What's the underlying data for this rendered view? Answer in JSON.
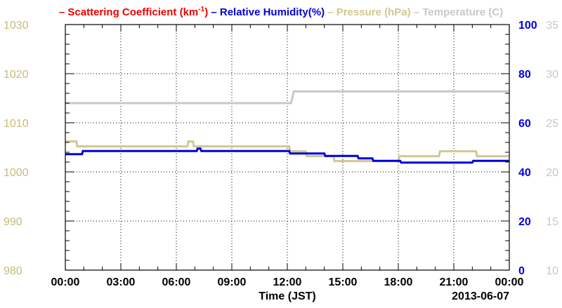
{
  "chart_data": {
    "type": "line",
    "legend": {
      "placement": "top",
      "entries": [
        {
          "series": "scattering",
          "text": "Scattering Coefficient (km",
          "sup": "-1",
          "tail": ")",
          "color": "#ee0000"
        },
        {
          "series": "humidity",
          "text": "Relative Humidity(%)",
          "color": "#0000dd"
        },
        {
          "series": "pressure",
          "text": "Pressure (hPa)",
          "color": "#d2c890"
        },
        {
          "series": "temperature",
          "text": "Temperature (C)",
          "color": "#c8c8c8"
        }
      ]
    },
    "xlabel": "Time (JST)",
    "date_label": "2013-06-07",
    "x_range_hours": [
      0,
      24
    ],
    "x_ticks": [
      {
        "hour": 0,
        "label": "00:00"
      },
      {
        "hour": 3,
        "label": "03:00"
      },
      {
        "hour": 6,
        "label": "06:00"
      },
      {
        "hour": 9,
        "label": "09:00"
      },
      {
        "hour": 12,
        "label": "12:00"
      },
      {
        "hour": 15,
        "label": "15:00"
      },
      {
        "hour": 18,
        "label": "18:00"
      },
      {
        "hour": 21,
        "label": "21:00"
      },
      {
        "hour": 24,
        "label": "00:00"
      }
    ],
    "grid": true,
    "axes": {
      "pressure": {
        "side": "left-outer",
        "range": [
          980,
          1030
        ],
        "ticks": [
          "980",
          "990",
          "1000",
          "1010",
          "1020",
          "1030"
        ],
        "color": "#c8bc78"
      },
      "humidity": {
        "side": "right-inner",
        "range": [
          0,
          100
        ],
        "ticks": [
          "0",
          "20",
          "40",
          "60",
          "80",
          "100"
        ],
        "color": "#0000dd"
      },
      "temperature": {
        "side": "right-outer",
        "range": [
          10,
          35
        ],
        "ticks": [
          "10",
          "15",
          "20",
          "25",
          "30",
          "35"
        ],
        "color": "#c8c8c8"
      }
    },
    "series": [
      {
        "key": "temperature",
        "axis": "temperature",
        "color": "#c8c8c8",
        "points": [
          [
            0,
            27.0
          ],
          [
            12.2,
            27.0
          ],
          [
            12.35,
            28.2
          ],
          [
            24,
            28.2
          ]
        ]
      },
      {
        "key": "pressure",
        "axis": "pressure",
        "color": "#d2c890",
        "points": [
          [
            0,
            1006.2
          ],
          [
            0.6,
            1006.2
          ],
          [
            0.65,
            1005.2
          ],
          [
            6.6,
            1005.2
          ],
          [
            6.65,
            1006.2
          ],
          [
            6.9,
            1006.2
          ],
          [
            6.95,
            1005.2
          ],
          [
            12.1,
            1005.2
          ],
          [
            12.15,
            1004.2
          ],
          [
            13.0,
            1004.2
          ],
          [
            13.05,
            1003.2
          ],
          [
            14.5,
            1003.2
          ],
          [
            14.55,
            1002.2
          ],
          [
            16.2,
            1002.2
          ],
          [
            16.25,
            1002.2
          ],
          [
            18.0,
            1002.2
          ],
          [
            18.05,
            1003.2
          ],
          [
            20.2,
            1003.2
          ],
          [
            20.25,
            1004.2
          ],
          [
            22.2,
            1004.2
          ],
          [
            22.25,
            1003.2
          ],
          [
            24,
            1003.2
          ]
        ]
      },
      {
        "key": "humidity",
        "axis": "humidity",
        "color": "#0000dd",
        "points": [
          [
            0,
            47.2
          ],
          [
            0.9,
            47.2
          ],
          [
            0.95,
            48.5
          ],
          [
            7.1,
            48.5
          ],
          [
            7.15,
            49.5
          ],
          [
            7.3,
            49.5
          ],
          [
            7.35,
            48.5
          ],
          [
            12.1,
            48.5
          ],
          [
            12.15,
            47.5
          ],
          [
            14.0,
            47.5
          ],
          [
            14.05,
            46.5
          ],
          [
            15.8,
            46.5
          ],
          [
            15.85,
            45.5
          ],
          [
            16.6,
            45.5
          ],
          [
            16.65,
            44.5
          ],
          [
            18.1,
            44.5
          ],
          [
            18.15,
            43.8
          ],
          [
            22.0,
            43.8
          ],
          [
            22.05,
            44.5
          ],
          [
            24,
            44.5
          ]
        ]
      }
    ]
  }
}
